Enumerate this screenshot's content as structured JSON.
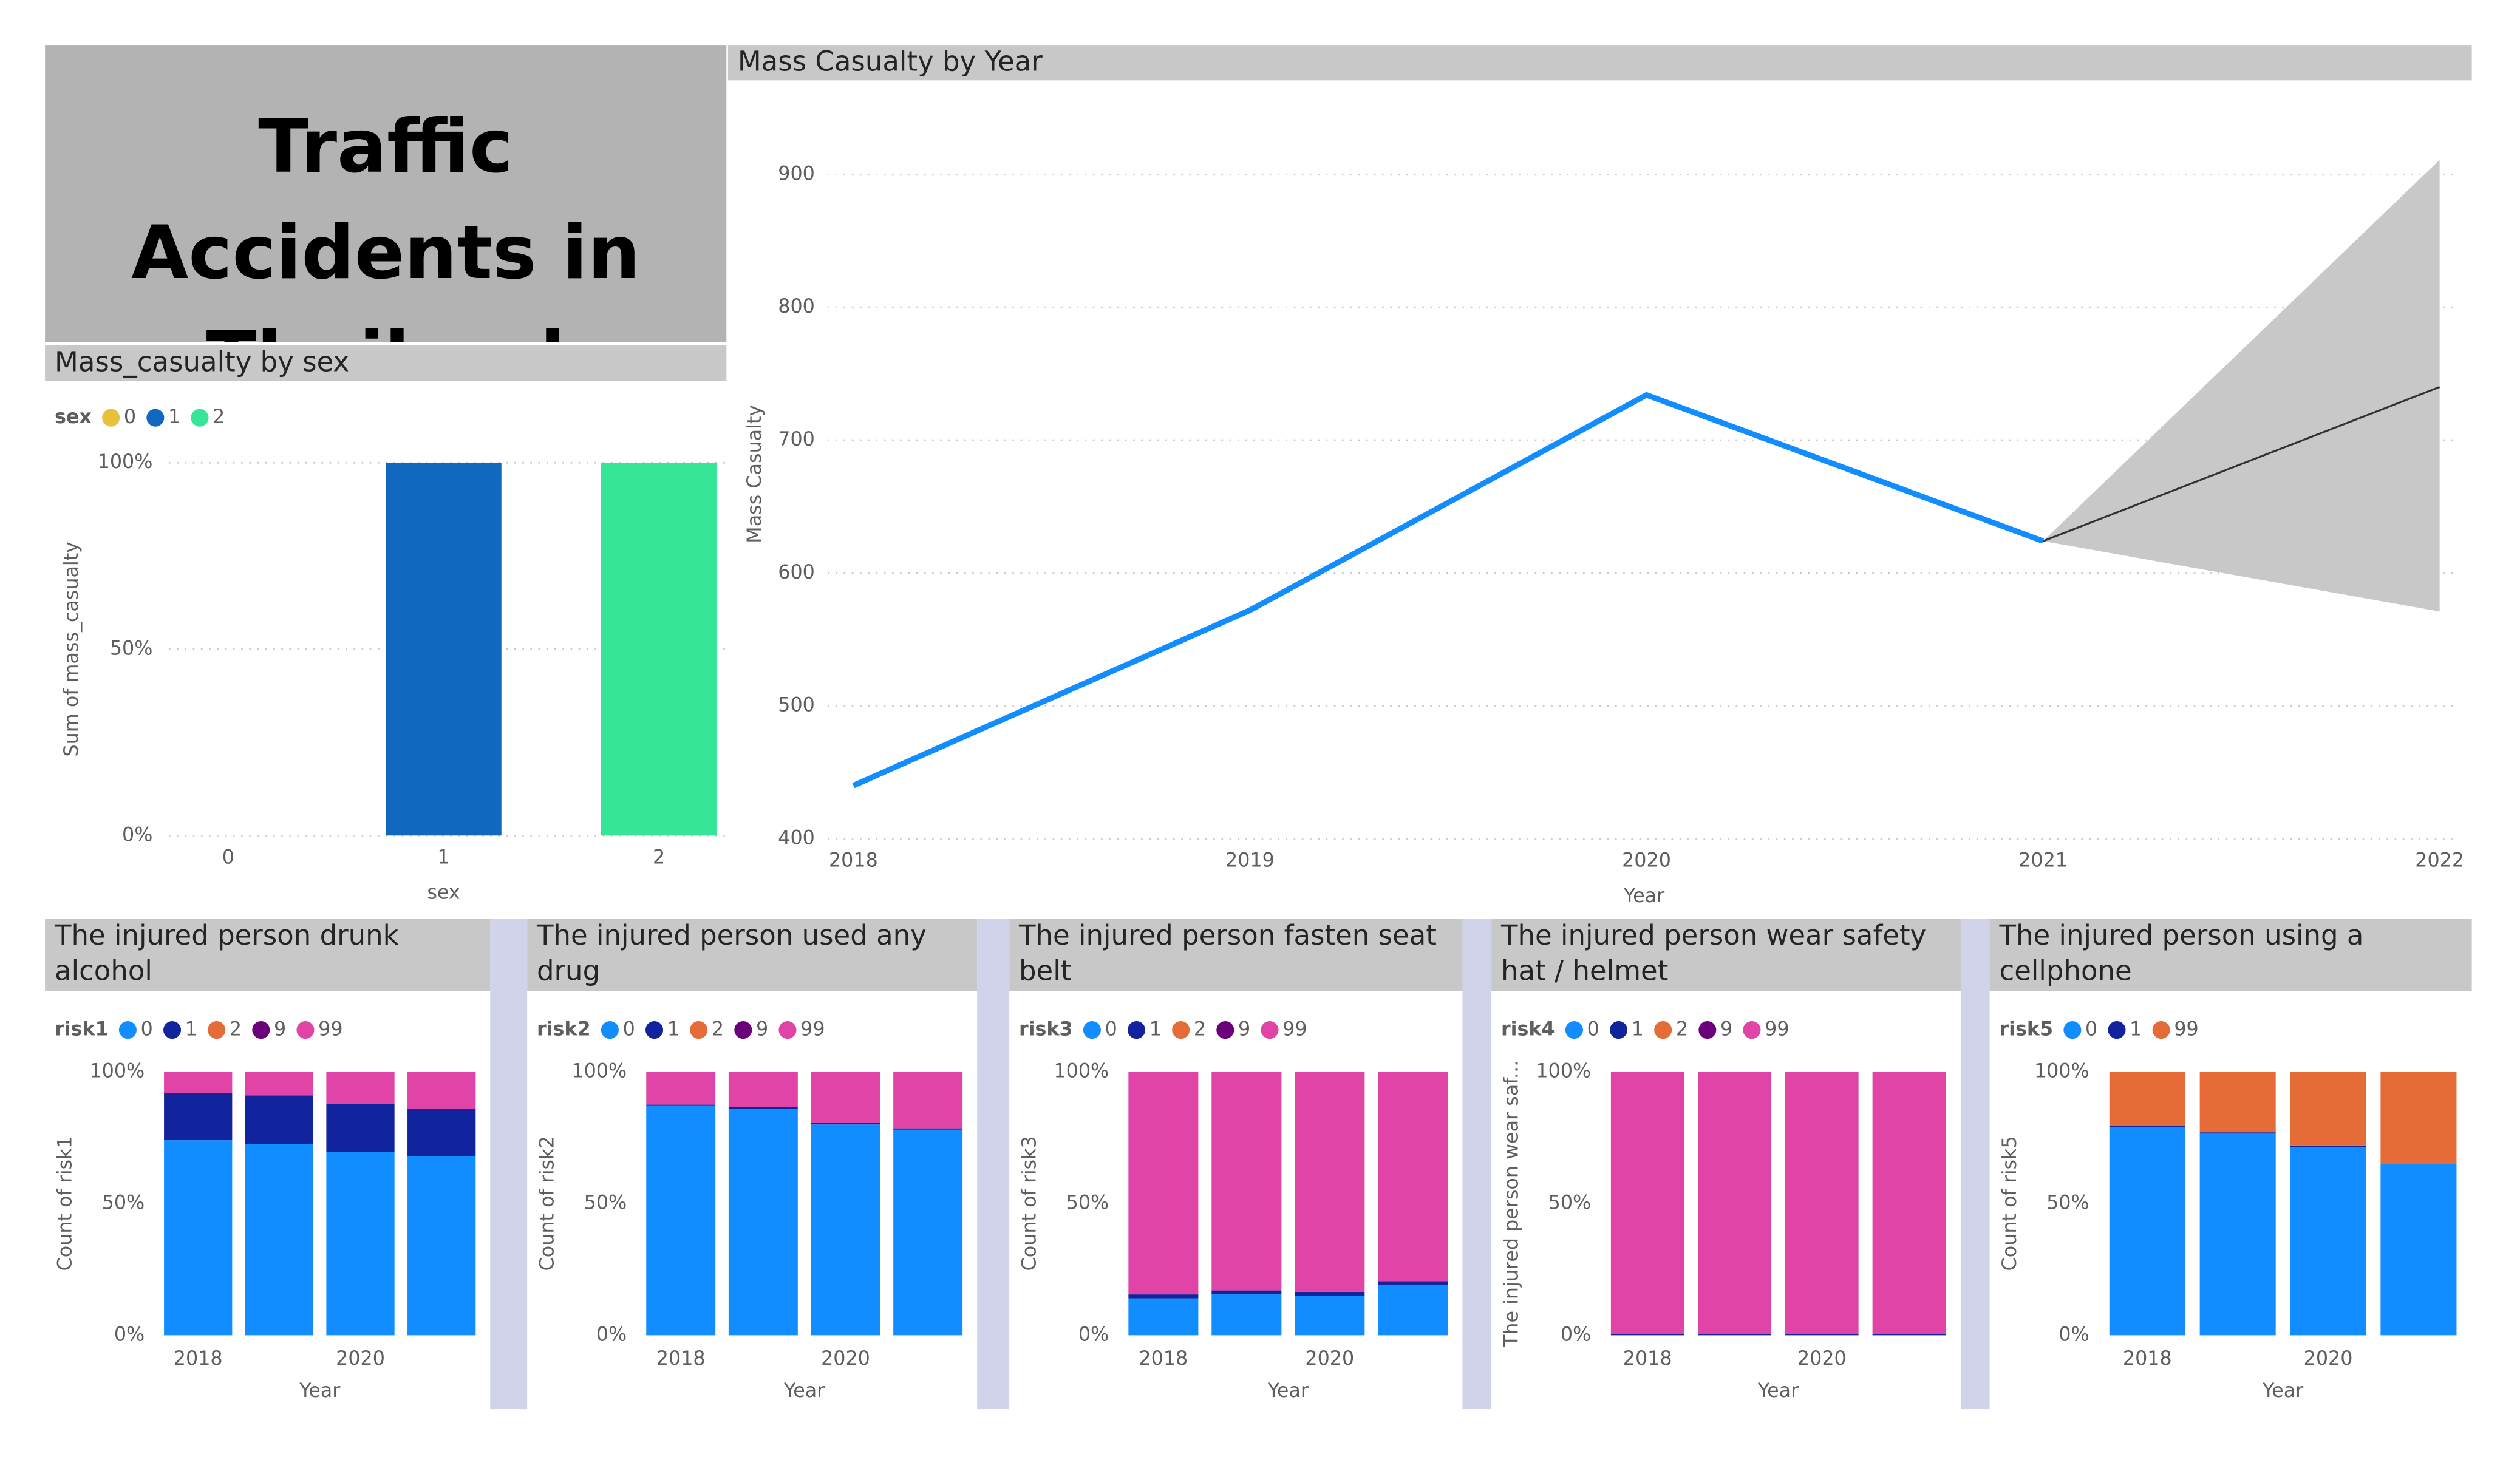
{
  "header": {
    "title": "Traffic Accidents in Thailand"
  },
  "chart_data": [
    {
      "type": "bar",
      "title": "Mass_casualty by sex",
      "legend_title": "sex",
      "categories": [
        "0",
        "1",
        "2"
      ],
      "values": [
        0,
        100,
        100
      ],
      "colors": [
        "#E8C13A",
        "#1068BF",
        "#37E599"
      ],
      "xlabel": "sex",
      "ylabel": "Sum of mass_casualty",
      "ylim": [
        0,
        100
      ],
      "yticks": [
        {
          "value": 0,
          "label": "0%"
        },
        {
          "value": 50,
          "label": "50%"
        },
        {
          "value": 100,
          "label": "100%"
        }
      ],
      "grid": true
    },
    {
      "type": "line",
      "title": "Mass Casualty by Year",
      "x": [
        2018,
        2019,
        2020,
        2021,
        2022
      ],
      "values": [
        440,
        572,
        734,
        624,
        null
      ],
      "color": "#118DFF",
      "xlim": [
        2018,
        2022
      ],
      "xticks": [
        2018,
        2019,
        2020,
        2021,
        2022
      ],
      "ylim": [
        400,
        920
      ],
      "yticks": [
        400,
        500,
        600,
        700,
        800,
        900
      ],
      "grid": true,
      "xlabel": "Year",
      "ylabel": "Mass Casualty",
      "forecast": {
        "x": [
          2021,
          2022
        ],
        "values": [
          624,
          740
        ],
        "upper": [
          624,
          911
        ],
        "lower": [
          624,
          571
        ],
        "color": "#333333",
        "band_color": "#C8C8C8"
      }
    },
    {
      "type": "stacked_bar",
      "title": "The injured person drunk alcohol",
      "legend_title": "risk1",
      "categories": [
        "2018",
        null,
        "2020",
        null
      ],
      "series": [
        {
          "name": "0",
          "color": "#118DFF",
          "values": [
            74,
            72.6,
            69.5,
            68
          ]
        },
        {
          "name": "1",
          "color": "#12239E",
          "values": [
            18,
            18.4,
            18.3,
            18
          ]
        },
        {
          "name": "2",
          "color": "#E66C37",
          "values": [
            0,
            0,
            0,
            0
          ]
        },
        {
          "name": "9",
          "color": "#6B007B",
          "values": [
            0,
            0,
            0,
            0
          ]
        },
        {
          "name": "99",
          "color": "#E044A7",
          "values": [
            8,
            9,
            12.2,
            14
          ]
        }
      ],
      "ylim": [
        0,
        100
      ],
      "yticks": [
        {
          "value": 0,
          "label": "0%"
        },
        {
          "value": 50,
          "label": "50%"
        },
        {
          "value": 100,
          "label": "100%"
        }
      ],
      "xlabel": "Year",
      "ylabel": "Count of risk1"
    },
    {
      "type": "stacked_bar",
      "title": "The injured person used any drug",
      "legend_title": "risk2",
      "categories": [
        "2018",
        null,
        "2020",
        null
      ],
      "series": [
        {
          "name": "0",
          "color": "#118DFF",
          "values": [
            87,
            86,
            80,
            78
          ]
        },
        {
          "name": "1",
          "color": "#12239E",
          "values": [
            0.5,
            0.5,
            0.5,
            0.5
          ]
        },
        {
          "name": "2",
          "color": "#E66C37",
          "values": [
            0,
            0,
            0,
            0
          ]
        },
        {
          "name": "9",
          "color": "#6B007B",
          "values": [
            0,
            0,
            0,
            0
          ]
        },
        {
          "name": "99",
          "color": "#E044A7",
          "values": [
            12.5,
            13.5,
            19.5,
            21.5
          ]
        }
      ],
      "ylim": [
        0,
        100
      ],
      "yticks": [
        {
          "value": 0,
          "label": "0%"
        },
        {
          "value": 50,
          "label": "50%"
        },
        {
          "value": 100,
          "label": "100%"
        }
      ],
      "xlabel": "Year",
      "ylabel": "Count of risk2"
    },
    {
      "type": "stacked_bar",
      "title": "The injured person fasten seat belt",
      "legend_title": "risk3",
      "categories": [
        "2018",
        null,
        "2020",
        null
      ],
      "series": [
        {
          "name": "0",
          "color": "#118DFF",
          "values": [
            14,
            15.5,
            15,
            19
          ]
        },
        {
          "name": "1",
          "color": "#12239E",
          "values": [
            1.5,
            1.5,
            1.5,
            1.5
          ]
        },
        {
          "name": "2",
          "color": "#E66C37",
          "values": [
            0,
            0,
            0,
            0
          ]
        },
        {
          "name": "9",
          "color": "#6B007B",
          "values": [
            0,
            0,
            0,
            0
          ]
        },
        {
          "name": "99",
          "color": "#E044A7",
          "values": [
            84.5,
            83,
            83.5,
            79.5
          ]
        }
      ],
      "ylim": [
        0,
        100
      ],
      "yticks": [
        {
          "value": 0,
          "label": "0%"
        },
        {
          "value": 50,
          "label": "50%"
        },
        {
          "value": 100,
          "label": "100%"
        }
      ],
      "xlabel": "Year",
      "ylabel": "Count of risk3"
    },
    {
      "type": "stacked_bar",
      "title": "The injured person wear safety hat / helmet",
      "legend_title": "risk4",
      "categories": [
        "2018",
        null,
        "2020",
        null
      ],
      "series": [
        {
          "name": "0",
          "color": "#118DFF",
          "values": [
            0,
            0,
            0,
            0
          ]
        },
        {
          "name": "1",
          "color": "#12239E",
          "values": [
            0.5,
            0.5,
            0.5,
            0.5
          ]
        },
        {
          "name": "2",
          "color": "#E66C37",
          "values": [
            0,
            0,
            0,
            0
          ]
        },
        {
          "name": "9",
          "color": "#6B007B",
          "values": [
            0,
            0,
            0,
            0
          ]
        },
        {
          "name": "99",
          "color": "#E044A7",
          "values": [
            99.5,
            99.5,
            99.5,
            99.5
          ]
        }
      ],
      "ylim": [
        0,
        100
      ],
      "yticks": [
        {
          "value": 0,
          "label": "0%"
        },
        {
          "value": 50,
          "label": "50%"
        },
        {
          "value": 100,
          "label": "100%"
        }
      ],
      "xlabel": "Year",
      "ylabel": "The injured person wear saf..."
    },
    {
      "type": "stacked_bar",
      "title": "The injured person using a cellphone",
      "legend_title": "risk5",
      "categories": [
        "2018",
        null,
        "2020",
        null
      ],
      "series": [
        {
          "name": "0",
          "color": "#118DFF",
          "values": [
            79,
            76.5,
            71.5,
            65
          ]
        },
        {
          "name": "1",
          "color": "#12239E",
          "values": [
            0.5,
            0.5,
            0.5,
            0
          ]
        },
        {
          "name": "99",
          "color": "#E66C37",
          "values": [
            20.5,
            23,
            28,
            35
          ]
        }
      ],
      "ylim": [
        0,
        100
      ],
      "yticks": [
        {
          "value": 0,
          "label": "0%"
        },
        {
          "value": 50,
          "label": "50%"
        },
        {
          "value": 100,
          "label": "100%"
        }
      ],
      "xlabel": "Year",
      "ylabel": "Count of risk5"
    }
  ]
}
